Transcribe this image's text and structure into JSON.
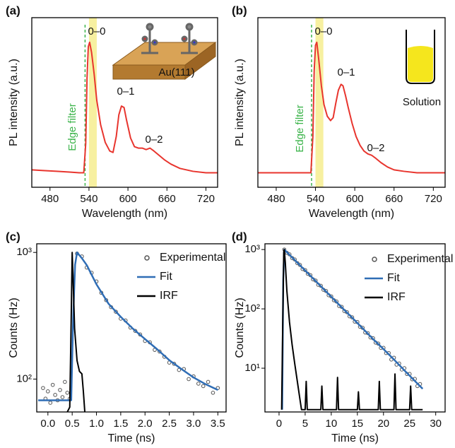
{
  "chart_data": [
    {
      "type": "line",
      "panel_label": "(a)",
      "x_label": "Wavelength (nm)",
      "y_label": "PL intensity (a.u.)",
      "xlim": [
        452,
        738
      ],
      "xticks": [
        480,
        540,
        600,
        660,
        720
      ],
      "ylim": [
        0,
        1.17
      ],
      "highlight_range": [
        540,
        552
      ],
      "highlight_color": "#f7f0a0",
      "filter_line": 534,
      "filter_color": "#3cb44b",
      "annotations": [
        "0–0",
        "0–1",
        "0–2",
        "Edge filter",
        "Au(111)"
      ],
      "series": [
        {
          "color": "#e8352e",
          "x": [
            452,
            470,
            490,
            510,
            525,
            532,
            535,
            537,
            539,
            541,
            544,
            548,
            552,
            558,
            565,
            572,
            577,
            582,
            586,
            590,
            594,
            598,
            604,
            610,
            616,
            622,
            628,
            634,
            640,
            648,
            656,
            666,
            680,
            700,
            720,
            738
          ],
          "values": [
            0.12,
            0.115,
            0.11,
            0.105,
            0.1,
            0.1,
            0.3,
            0.75,
            0.97,
            1.0,
            0.93,
            0.78,
            0.6,
            0.43,
            0.31,
            0.25,
            0.24,
            0.35,
            0.5,
            0.56,
            0.55,
            0.46,
            0.34,
            0.28,
            0.27,
            0.27,
            0.26,
            0.27,
            0.25,
            0.22,
            0.19,
            0.16,
            0.13,
            0.11,
            0.1,
            0.1
          ]
        }
      ]
    },
    {
      "type": "line",
      "panel_label": "(b)",
      "x_label": "Wavelength (nm)",
      "y_label": "PL intensity (a.u.)",
      "xlim": [
        452,
        738
      ],
      "xticks": [
        480,
        540,
        600,
        660,
        720
      ],
      "ylim": [
        0,
        1.17
      ],
      "highlight_range": [
        540,
        552
      ],
      "highlight_color": "#f7f0a0",
      "filter_line": 534,
      "filter_color": "#3cb44b",
      "annotations": [
        "0–0",
        "0–1",
        "0–2",
        "Edge filter",
        "Solution"
      ],
      "series": [
        {
          "color": "#e8352e",
          "x": [
            452,
            470,
            490,
            510,
            525,
            533,
            536,
            538,
            540,
            542,
            545,
            549,
            553,
            558,
            563,
            567,
            571,
            575,
            579,
            582,
            586,
            590,
            596,
            602,
            608,
            614,
            620,
            626,
            632,
            640,
            650,
            660,
            675,
            695,
            715,
            738
          ],
          "values": [
            0.1,
            0.1,
            0.1,
            0.1,
            0.1,
            0.1,
            0.35,
            0.8,
            0.98,
            1.0,
            0.88,
            0.7,
            0.57,
            0.49,
            0.46,
            0.48,
            0.58,
            0.67,
            0.71,
            0.7,
            0.63,
            0.55,
            0.44,
            0.35,
            0.29,
            0.25,
            0.23,
            0.22,
            0.2,
            0.17,
            0.14,
            0.12,
            0.11,
            0.1,
            0.1,
            0.1
          ]
        }
      ]
    },
    {
      "type": "line",
      "panel_label": "(c)",
      "x_label": "Time (ns)",
      "y_label": "Counts (Hz)",
      "log_y": true,
      "legend": "upper right",
      "xlim": [
        -0.23,
        3.67
      ],
      "xticks": [
        {
          "value": 0,
          "label": "0.0"
        },
        0.5,
        {
          "value": 1,
          "label": "1.0"
        },
        1.5,
        {
          "value": 2,
          "label": "2.0"
        },
        2.5,
        {
          "value": 3,
          "label": "3.0"
        },
        3.5
      ],
      "ylim": [
        55,
        1170
      ],
      "yticks": [
        {
          "value": 100,
          "label": "10²"
        },
        {
          "value": 1000,
          "label": "10³"
        }
      ],
      "series": [
        {
          "name": "Experimental",
          "color": "#555555",
          "style": "markers",
          "x": [
            -0.1,
            -0.05,
            0,
            0.05,
            0.1,
            0.15,
            0.2,
            0.25,
            0.3,
            0.35,
            0.4,
            0.45,
            0.6,
            0.7,
            0.8,
            0.9,
            1.0,
            1.1,
            1.2,
            1.3,
            1.4,
            1.5,
            1.6,
            1.7,
            1.8,
            1.9,
            2.0,
            2.1,
            2.2,
            2.3,
            2.4,
            2.5,
            2.6,
            2.7,
            2.8,
            2.9,
            3.0,
            3.1,
            3.2,
            3.3,
            3.4,
            3.5
          ],
          "values": [
            85,
            70,
            80,
            65,
            90,
            75,
            68,
            82,
            72,
            95,
            78,
            70,
            980,
            930,
            760,
            690,
            590,
            480,
            420,
            370,
            340,
            300,
            290,
            255,
            240,
            225,
            200,
            195,
            170,
            165,
            150,
            135,
            132,
            118,
            120,
            100,
            105,
            92,
            88,
            95,
            78,
            85
          ]
        },
        {
          "name": "Fit",
          "color": "#2f6db5",
          "style": "line",
          "x": [
            -0.2,
            0.45,
            0.48,
            0.52,
            0.56,
            0.6,
            0.7,
            0.8,
            1.0,
            1.25,
            1.5,
            1.75,
            2.0,
            2.25,
            2.5,
            2.75,
            3.0,
            3.25,
            3.5
          ],
          "values": [
            68,
            68,
            68,
            300,
            800,
            1000,
            900,
            794,
            560,
            393,
            310,
            250,
            207,
            172,
            141,
            120,
            103,
            91,
            82
          ]
        },
        {
          "name": "IRF",
          "color": "#000000",
          "style": "line",
          "x": [
            0.4,
            0.45,
            0.48,
            0.5,
            0.52,
            0.55,
            0.6,
            0.65,
            0.7,
            0.73,
            0.76
          ],
          "values": [
            55,
            60,
            300,
            1000,
            600,
            250,
            140,
            115,
            110,
            80,
            55
          ]
        }
      ]
    },
    {
      "type": "line",
      "panel_label": "(d)",
      "x_label": "Time (ns)",
      "y_label": "Counts (Hz)",
      "log_y": true,
      "legend": "upper right",
      "xlim": [
        -2.7,
        31.8
      ],
      "xticks": [
        0,
        5,
        10,
        15,
        20,
        25,
        30
      ],
      "ylim": [
        1.83,
        1250
      ],
      "yticks": [
        {
          "value": 10,
          "label": "10¹"
        },
        {
          "value": 100,
          "label": "10²"
        },
        {
          "value": 1000,
          "label": "10³"
        }
      ],
      "series": [
        {
          "name": "Experimental",
          "color": "#555555",
          "style": "markers",
          "x": [
            1,
            1.5,
            2,
            2.5,
            3,
            3.5,
            4,
            4.5,
            5,
            5.5,
            6,
            6.5,
            7,
            7.5,
            8,
            8.5,
            9,
            9.5,
            10,
            10.5,
            11,
            11.5,
            12,
            12.5,
            13,
            13.5,
            14,
            14.5,
            15,
            15.5,
            16,
            16.5,
            17,
            17.5,
            18,
            18.5,
            19,
            19.5,
            20,
            20.5,
            21,
            21.5,
            22,
            22.5,
            23,
            23.5,
            24,
            24.5,
            25,
            25.5,
            26,
            26.5,
            27
          ],
          "values": [
            1000,
            880,
            830,
            720,
            680,
            590,
            550,
            470,
            450,
            390,
            370,
            315,
            300,
            255,
            245,
            210,
            200,
            170,
            162,
            140,
            133,
            112,
            108,
            92,
            88,
            75,
            72,
            61,
            60,
            50,
            48,
            40,
            39,
            33,
            32,
            27,
            26,
            22,
            22,
            18,
            18,
            14,
            15,
            11.5,
            12,
            9.5,
            10,
            8,
            8,
            6.5,
            6.6,
            5,
            5.4
          ]
        },
        {
          "name": "Fit",
          "color": "#2f6db5",
          "style": "line",
          "x": [
            0.6,
            0.8,
            1.0,
            1.5,
            2,
            4,
            6,
            8,
            10,
            12,
            14,
            16,
            18,
            20,
            22,
            24,
            26,
            27.5
          ],
          "values": [
            2,
            300,
            1000,
            903,
            815,
            543,
            361,
            240,
            160,
            106,
            71,
            47,
            31,
            21,
            14,
            9.2,
            6.1,
            4.5
          ]
        },
        {
          "name": "IRF",
          "color": "#000000",
          "style": "line",
          "x": [
            0.5,
            0.7,
            0.9,
            1.0,
            1.2,
            1.5,
            2,
            2.5,
            3,
            3.5,
            4,
            4.3,
            4.5,
            5,
            5.2,
            5.4,
            6,
            8,
            8.2,
            8.4,
            10,
            11,
            11.2,
            11.4,
            13,
            15,
            15.2,
            15.4,
            17,
            19,
            19.2,
            19.4,
            21,
            22,
            22.2,
            22.4,
            24,
            25,
            25.2,
            25.4,
            27.5
          ],
          "values": [
            2,
            50,
            900,
            1000,
            600,
            200,
            60,
            25,
            12,
            6,
            3,
            2,
            2,
            2,
            6,
            2,
            2,
            2,
            5,
            2,
            2,
            2,
            7,
            2,
            2,
            2,
            4,
            2,
            2,
            2,
            6,
            2,
            2,
            2,
            8,
            2,
            2,
            2,
            5,
            2,
            2
          ]
        }
      ]
    }
  ]
}
